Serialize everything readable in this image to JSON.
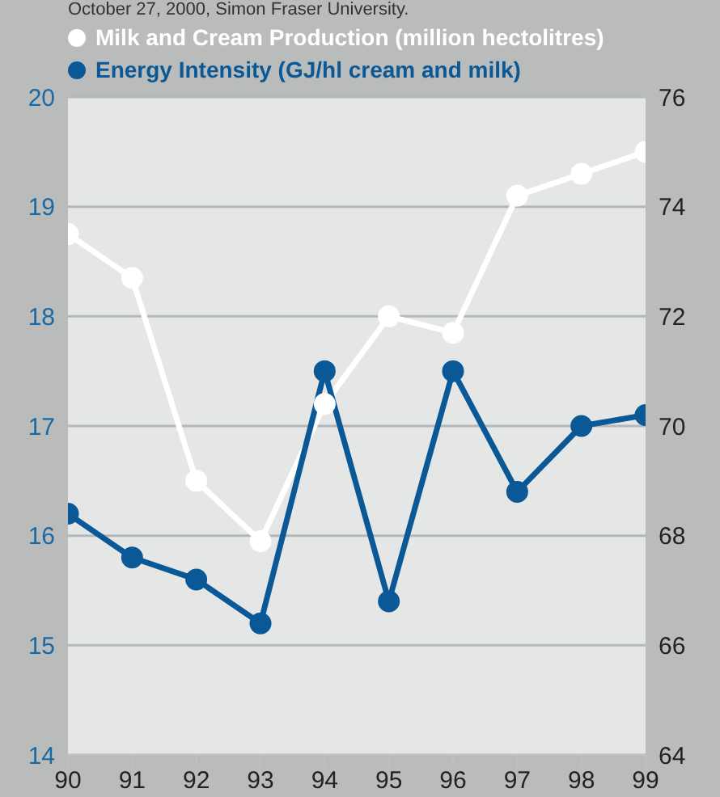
{
  "chart_data": {
    "type": "line",
    "annotations": [
      "October 27, 2000, Simon Fraser University."
    ],
    "x": [
      90,
      91,
      92,
      93,
      94,
      95,
      96,
      97,
      98,
      99
    ],
    "xlim": [
      90,
      99
    ],
    "xticks": [
      90,
      91,
      92,
      93,
      94,
      95,
      96,
      97,
      98,
      99
    ],
    "ylim": [
      14,
      20
    ],
    "yticks": [
      14,
      15,
      16,
      17,
      18,
      19,
      20
    ],
    "y2lim": [
      64,
      76
    ],
    "y2ticks": [
      64,
      66,
      68,
      70,
      72,
      74,
      76
    ],
    "grid": "y",
    "legend": "top left",
    "marker": "circle",
    "line_style": "solid",
    "series": [
      {
        "name": "Milk and Cream Production (million hectolitres)",
        "color": "#ffffff",
        "axis": "y2",
        "values": [
          73.5,
          72.7,
          69.0,
          67.9,
          70.4,
          72.0,
          71.7,
          74.2,
          74.6,
          75.0
        ]
      },
      {
        "name": "Energy Intensity (GJ/hl cream and milk)",
        "color": "#0a5896",
        "values": [
          16.2,
          15.8,
          15.6,
          15.2,
          17.5,
          15.4,
          17.5,
          16.4,
          17.0,
          17.1
        ]
      }
    ]
  }
}
